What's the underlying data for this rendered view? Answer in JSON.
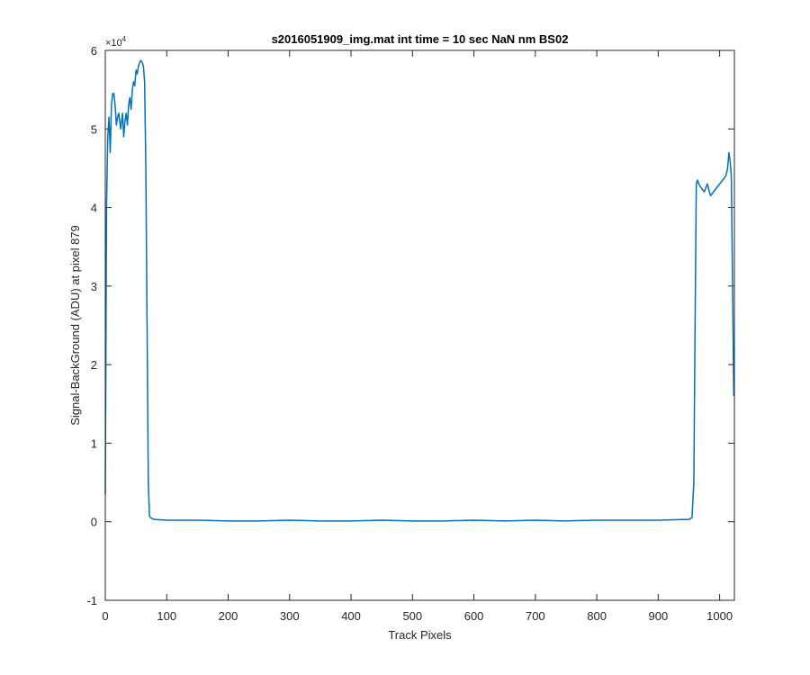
{
  "chart_data": {
    "type": "line",
    "title": "s2016051909_img.mat int time = 10 sec  NaN nm BS02",
    "xlabel": "Track Pixels",
    "ylabel": "Signal-BackGround (ADU) at pixel 879",
    "xlim": [
      0,
      1024
    ],
    "ylim": [
      -1,
      6
    ],
    "y_exponent_label": "×10",
    "y_exponent_power": "4",
    "x_ticks": [
      0,
      100,
      200,
      300,
      400,
      500,
      600,
      700,
      800,
      900,
      1000
    ],
    "x_tick_labels": [
      "0",
      "100",
      "200",
      "300",
      "400",
      "500",
      "600",
      "700",
      "800",
      "900",
      "1000"
    ],
    "y_ticks": [
      -1,
      0,
      1,
      2,
      3,
      4,
      5,
      6
    ],
    "y_tick_labels": [
      "-1",
      "0",
      "1",
      "2",
      "3",
      "4",
      "5",
      "6"
    ],
    "grid": false,
    "series": [
      {
        "color": "#0072BD",
        "x": [
          0,
          2,
          4,
          6,
          8,
          10,
          12,
          14,
          16,
          18,
          20,
          22,
          25,
          28,
          30,
          32,
          34,
          36,
          38,
          40,
          42,
          44,
          46,
          48,
          50,
          52,
          54,
          56,
          58,
          60,
          62,
          64,
          66,
          68,
          70,
          72,
          74,
          76,
          80,
          100,
          150,
          200,
          250,
          300,
          350,
          400,
          450,
          500,
          550,
          600,
          650,
          700,
          750,
          800,
          850,
          900,
          950,
          955,
          958,
          960,
          962,
          964,
          966,
          970,
          975,
          980,
          985,
          990,
          995,
          1000,
          1005,
          1010,
          1013,
          1015,
          1017,
          1019,
          1021,
          1023
        ],
        "y": [
          0.35,
          4.0,
          4.9,
          5.15,
          4.7,
          5.3,
          5.45,
          5.45,
          5.3,
          5.05,
          5.15,
          5.2,
          5.0,
          5.2,
          4.9,
          5.1,
          5.2,
          5.05,
          5.3,
          5.4,
          5.25,
          5.5,
          5.6,
          5.55,
          5.75,
          5.7,
          5.8,
          5.85,
          5.87,
          5.85,
          5.8,
          5.6,
          4.5,
          2.5,
          0.5,
          0.07,
          0.05,
          0.04,
          0.03,
          0.02,
          0.02,
          0.01,
          0.01,
          0.02,
          0.01,
          0.01,
          0.02,
          0.01,
          0.01,
          0.02,
          0.01,
          0.02,
          0.01,
          0.02,
          0.02,
          0.02,
          0.03,
          0.05,
          0.5,
          2.5,
          4.3,
          4.35,
          4.3,
          4.25,
          4.2,
          4.3,
          4.15,
          4.2,
          4.25,
          4.3,
          4.35,
          4.4,
          4.5,
          4.7,
          4.6,
          4.4,
          3.0,
          1.6
        ]
      }
    ]
  }
}
